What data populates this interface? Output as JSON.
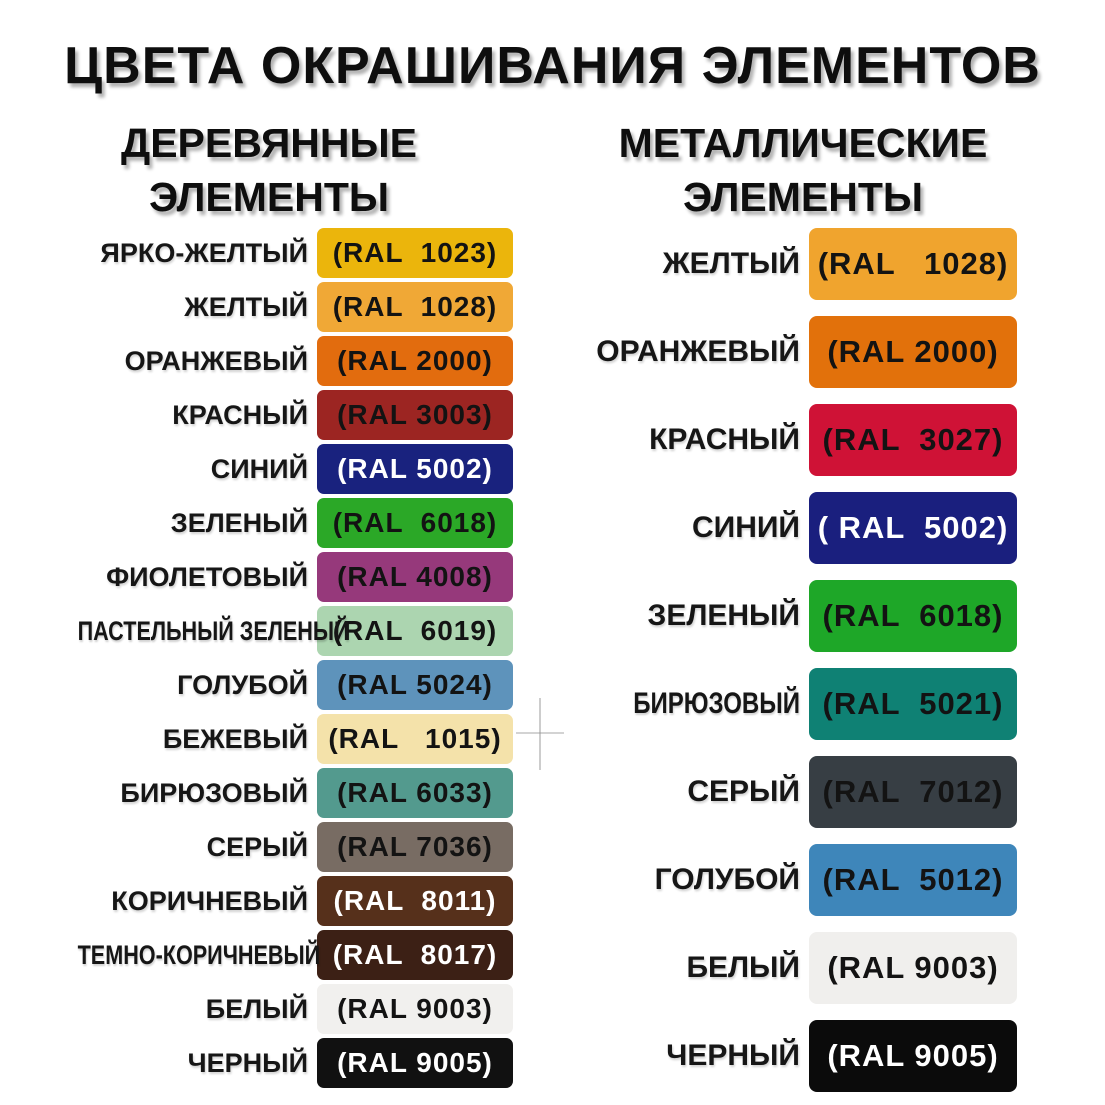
{
  "title": "ЦВЕТА ОКРАШИВАНИЯ ЭЛЕМЕНТОВ",
  "columns": [
    {
      "id": "wooden",
      "header_line1": "ДЕРЕВЯННЫЕ",
      "header_line2": "ЭЛЕМЕНТЫ",
      "rows": [
        {
          "label": "ЯРКО-ЖЕЛТЫЙ",
          "ral": "(RAL  1023)",
          "color": "#EBB50C",
          "text": "#131313",
          "narrow": false
        },
        {
          "label": "ЖЕЛТЫЙ",
          "ral": "(RAL  1028)",
          "color": "#F0A836",
          "text": "#131313",
          "narrow": false
        },
        {
          "label": "ОРАНЖЕВЫЙ",
          "ral": "(RAL 2000)",
          "color": "#E26C0E",
          "text": "#131313",
          "narrow": false
        },
        {
          "label": "КРАСНЫЙ",
          "ral": "(RAL 3003)",
          "color": "#9C2522",
          "text": "#131313",
          "narrow": false
        },
        {
          "label": "СИНИЙ",
          "ral": "(RAL 5002)",
          "color": "#19227E",
          "text": "#FFFFFF",
          "narrow": false
        },
        {
          "label": "ЗЕЛЕНЫЙ",
          "ral": "(RAL  6018)",
          "color": "#2BA827",
          "text": "#131313",
          "narrow": false
        },
        {
          "label": "ФИОЛЕТОВЫЙ",
          "ral": "(RAL 4008)",
          "color": "#96397B",
          "text": "#131313",
          "narrow": false
        },
        {
          "label": "ПАСТЕЛЬНЫЙ ЗЕЛЕНЫЙ",
          "ral": "(RAL  6019)",
          "color": "#ACD5B0",
          "text": "#131313",
          "narrow": true
        },
        {
          "label": "ГОЛУБОЙ",
          "ral": "(RAL 5024)",
          "color": "#5E93BB",
          "text": "#131313",
          "narrow": false
        },
        {
          "label": "БЕЖЕВЫЙ",
          "ral": "(RAL   1015)",
          "color": "#F4E2AA",
          "text": "#131313",
          "narrow": false
        },
        {
          "label": "БИРЮЗОВЫЙ",
          "ral": "(RAL 6033)",
          "color": "#539A8E",
          "text": "#131313",
          "narrow": false
        },
        {
          "label": "СЕРЫЙ",
          "ral": "(RAL 7036)",
          "color": "#786C63",
          "text": "#131313",
          "narrow": false
        },
        {
          "label": "КОРИЧНЕВЫЙ",
          "ral": "(RAL  8011)",
          "color": "#56301B",
          "text": "#FFFFFF",
          "narrow": false
        },
        {
          "label": "ТЕМНО-КОРИЧНЕВЫЙ",
          "ral": "(RAL  8017)",
          "color": "#3C2015",
          "text": "#FFFFFF",
          "narrow": true
        },
        {
          "label": "БЕЛЫЙ",
          "ral": "(RAL 9003)",
          "color": "#F1F0EE",
          "text": "#131313",
          "narrow": false
        },
        {
          "label": "ЧЕРНЫЙ",
          "ral": "(RAL 9005)",
          "color": "#111111",
          "text": "#FFFFFF",
          "narrow": false
        }
      ]
    },
    {
      "id": "metal",
      "header_line1": "МЕТАЛЛИЧЕСКИЕ",
      "header_line2": "ЭЛЕМЕНТЫ",
      "rows": [
        {
          "label": "ЖЕЛТЫЙ",
          "ral": "(RAL   1028)",
          "color": "#F0A42E",
          "text": "#131313",
          "narrow": false
        },
        {
          "label": "ОРАНЖЕВЫЙ",
          "ral": "(RAL 2000)",
          "color": "#E2710B",
          "text": "#131313",
          "narrow": false
        },
        {
          "label": "КРАСНЫЙ",
          "ral": "(RAL  3027)",
          "color": "#CF1236",
          "text": "#131313",
          "narrow": false
        },
        {
          "label": "СИНИЙ",
          "ral": "( RAL  5002)",
          "color": "#1A1F7E",
          "text": "#FFFFFF",
          "narrow": false
        },
        {
          "label": "ЗЕЛЕНЫЙ",
          "ral": "(RAL  6018)",
          "color": "#1EA728",
          "text": "#131313",
          "narrow": false
        },
        {
          "label": "БИРЮЗОВЫЙ",
          "ral": "(RAL  5021)",
          "color": "#0F8174",
          "text": "#131313",
          "narrow": true
        },
        {
          "label": "СЕРЫЙ",
          "ral": "(RAL  7012)",
          "color": "#373E44",
          "text": "#131313",
          "narrow": false
        },
        {
          "label": "ГОЛУБОЙ",
          "ral": "(RAL  5012)",
          "color": "#3E86BA",
          "text": "#131313",
          "narrow": false
        },
        {
          "label": "БЕЛЫЙ",
          "ral": "(RAL 9003)",
          "color": "#F0EFED",
          "text": "#131313",
          "narrow": false
        },
        {
          "label": "ЧЕРНЫЙ",
          "ral": "(RAL 9005)",
          "color": "#0B0B0B",
          "text": "#FFFFFF",
          "narrow": false
        }
      ]
    }
  ],
  "artifact": {
    "description": "faint-cursor-cross"
  }
}
